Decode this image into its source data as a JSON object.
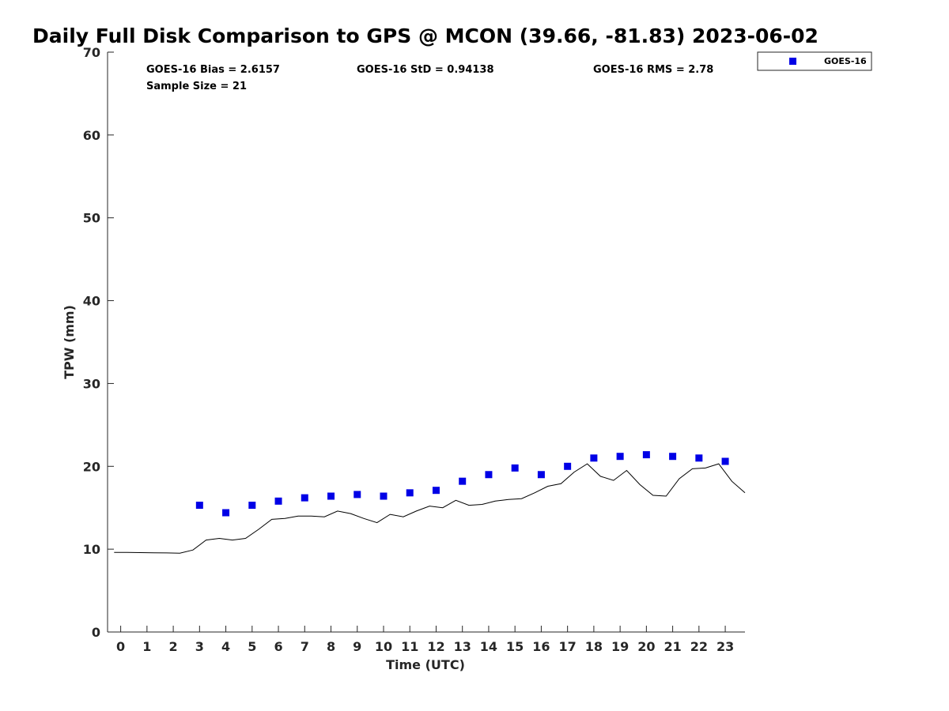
{
  "chart_data": {
    "type": "scatter",
    "title": "Daily Full Disk Comparison to GPS @ MCON (39.66, -81.83) 2023-06-02",
    "xlabel": "Time (UTC)",
    "ylabel": "TPW (mm)",
    "xlim": [
      -0.5,
      23.75
    ],
    "ylim": [
      0,
      70
    ],
    "x_ticks": [
      "0",
      "1",
      "2",
      "3",
      "4",
      "5",
      "6",
      "7",
      "8",
      "9",
      "10",
      "11",
      "12",
      "13",
      "14",
      "15",
      "16",
      "17",
      "18",
      "19",
      "20",
      "21",
      "22",
      "23"
    ],
    "y_ticks": [
      "0",
      "10",
      "20",
      "30",
      "40",
      "50",
      "60",
      "70"
    ],
    "grid": false,
    "legend_position": "top-right",
    "stats": {
      "bias": "GOES-16 Bias = 2.6157",
      "std": "GOES-16 StD = 0.94138",
      "rms": "GOES-16 RMS = 2.78",
      "sample_size": "Sample Size = 21"
    },
    "series": [
      {
        "name": "GOES-16",
        "kind": "marker",
        "color": "#0000e6",
        "x": [
          3,
          4,
          5,
          6,
          7,
          8,
          9,
          10,
          11,
          12,
          13,
          14,
          15,
          16,
          17,
          18,
          19,
          20,
          21,
          22,
          23
        ],
        "y": [
          15.3,
          14.4,
          15.3,
          15.8,
          16.2,
          16.4,
          16.6,
          16.4,
          16.8,
          17.1,
          18.2,
          19.0,
          19.8,
          19.0,
          20.0,
          21.0,
          21.2,
          21.4,
          21.2,
          21.0,
          20.6
        ]
      },
      {
        "kind": "line",
        "color": "#000000",
        "x": [
          -0.25,
          0.25,
          0.75,
          1.25,
          1.75,
          2.25,
          2.75,
          3.25,
          3.75,
          4.25,
          4.75,
          5.25,
          5.75,
          6.25,
          6.75,
          7.25,
          7.75,
          8.25,
          8.75,
          9.25,
          9.75,
          10.25,
          10.75,
          11.25,
          11.75,
          12.25,
          12.75,
          13.25,
          13.75,
          14.25,
          14.75,
          15.25,
          15.75,
          16.25,
          16.75,
          17.25,
          17.75,
          18.25,
          18.75,
          19.25,
          19.75,
          20.25,
          20.75,
          21.25,
          21.75,
          22.25,
          22.75,
          23.25,
          23.75
        ],
        "y": [
          9.6,
          9.6,
          9.58,
          9.56,
          9.55,
          9.52,
          9.9,
          11.1,
          11.3,
          11.1,
          11.3,
          12.4,
          13.6,
          13.7,
          14.0,
          14.0,
          13.9,
          14.6,
          14.3,
          13.7,
          13.2,
          14.2,
          13.9,
          14.6,
          15.2,
          15.0,
          15.9,
          15.3,
          15.4,
          15.8,
          16.0,
          16.1,
          16.8,
          17.6,
          17.9,
          19.3,
          20.3,
          18.8,
          18.3,
          19.5,
          17.8,
          16.5,
          16.4,
          18.5,
          19.7,
          19.8,
          20.3,
          18.2,
          16.8
        ]
      }
    ]
  }
}
